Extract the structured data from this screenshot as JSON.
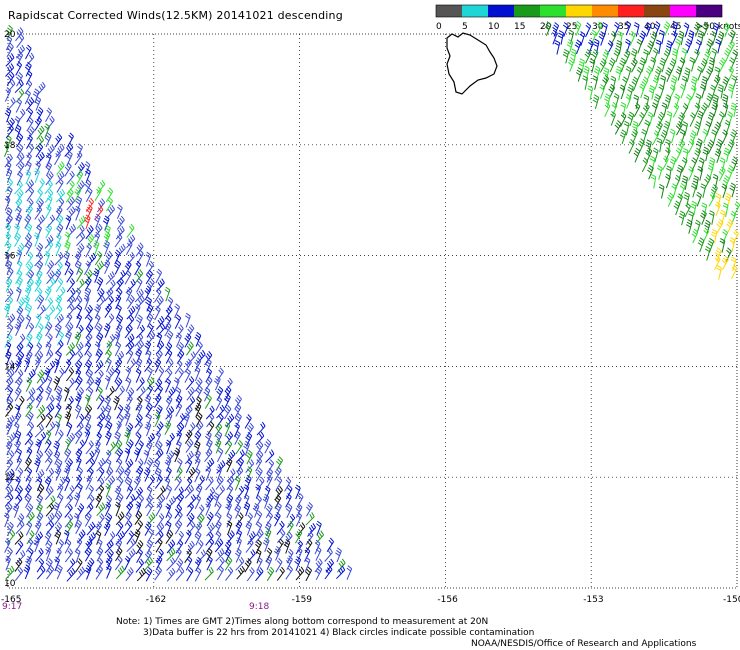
{
  "title": "Rapidscat Corrected Winds(12.5KM) 20141021 descending",
  "legend": {
    "labels": [
      "0",
      "5",
      "10",
      "15",
      "20",
      "25",
      "30",
      "35",
      "40",
      "45",
      ">50 knots"
    ],
    "colors": [
      "#555555",
      "#1fd6d6",
      "#0010d0",
      "#1a9a1a",
      "#2ee02e",
      "#ffd700",
      "#ff8c00",
      "#ff2020",
      "#8b4513",
      "#ff00ff",
      "#4b0082"
    ]
  },
  "axes": {
    "lon_labels": [
      "-165",
      "-162",
      "-159",
      "-156",
      "-153",
      "-150"
    ],
    "lat_labels": [
      "20",
      "18",
      "16",
      "14",
      "12",
      "10"
    ],
    "lon_values": [
      -165,
      -162,
      -159,
      -156,
      -153,
      -150
    ],
    "lat_values": [
      20,
      18,
      16,
      14,
      12,
      10
    ]
  },
  "times": [
    "9:17",
    "9:18"
  ],
  "notes": {
    "line1": "Note: 1) Times are GMT 2)Times along bottom correspond to measurement at 20N",
    "line2": "3)Data buffer is 22 hrs from 20141021 4) Black circles indicate possible contamination",
    "line3": "NOAA/NESDIS/Office of Research and Applications"
  }
}
